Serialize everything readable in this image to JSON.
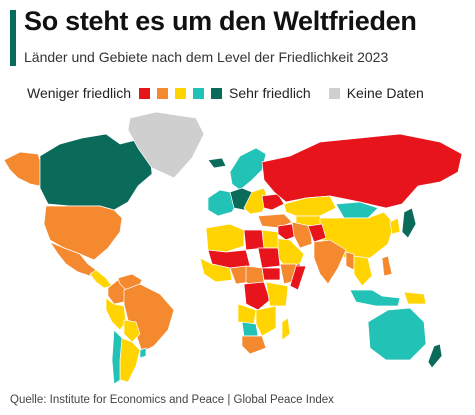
{
  "header": {
    "title": "So steht es um den Weltfrieden",
    "subtitle": "Länder und Gebiete nach dem Level der Friedlichkeit 2023"
  },
  "legend": {
    "less_label": "Weniger friedlich",
    "more_label": "Sehr friedlich",
    "nodata_label": "Keine Daten",
    "levels": [
      "very_low",
      "low",
      "medium",
      "high",
      "very_high"
    ]
  },
  "colors": {
    "accent": "#0b6b5a",
    "very_low": "#e8141c",
    "low": "#f5892f",
    "medium": "#ffd400",
    "high": "#22c2b6",
    "very_high": "#0b6b5a",
    "nodata": "#cfcfcf",
    "border": "#ffffff"
  },
  "regions": [
    {
      "id": "alaska",
      "level": "low"
    },
    {
      "id": "canada",
      "level": "very_high"
    },
    {
      "id": "usa",
      "level": "low"
    },
    {
      "id": "mexico",
      "level": "low"
    },
    {
      "id": "central-america",
      "level": "medium"
    },
    {
      "id": "colombia",
      "level": "low"
    },
    {
      "id": "venezuela",
      "level": "low"
    },
    {
      "id": "brazil",
      "level": "low"
    },
    {
      "id": "peru",
      "level": "medium"
    },
    {
      "id": "bolivia",
      "level": "medium"
    },
    {
      "id": "argentina",
      "level": "medium"
    },
    {
      "id": "chile",
      "level": "high"
    },
    {
      "id": "uruguay",
      "level": "high"
    },
    {
      "id": "greenland",
      "level": "nodata"
    },
    {
      "id": "iceland",
      "level": "very_high"
    },
    {
      "id": "scandinavia",
      "level": "high"
    },
    {
      "id": "western-europe",
      "level": "high"
    },
    {
      "id": "central-europe",
      "level": "very_high"
    },
    {
      "id": "eastern-europe",
      "level": "medium"
    },
    {
      "id": "ukraine",
      "level": "very_low"
    },
    {
      "id": "russia",
      "level": "very_low"
    },
    {
      "id": "kazakhstan",
      "level": "medium"
    },
    {
      "id": "central-asia",
      "level": "medium"
    },
    {
      "id": "mongolia",
      "level": "high"
    },
    {
      "id": "china",
      "level": "medium"
    },
    {
      "id": "turkey-middle-east",
      "level": "low"
    },
    {
      "id": "syria-iraq",
      "level": "very_low"
    },
    {
      "id": "iran",
      "level": "low"
    },
    {
      "id": "afghanistan",
      "level": "very_low"
    },
    {
      "id": "arabia",
      "level": "medium"
    },
    {
      "id": "yemen",
      "level": "very_low"
    },
    {
      "id": "india",
      "level": "low"
    },
    {
      "id": "southeast-asia",
      "level": "medium"
    },
    {
      "id": "myanmar",
      "level": "low"
    },
    {
      "id": "korea",
      "level": "medium"
    },
    {
      "id": "japan",
      "level": "very_high"
    },
    {
      "id": "indonesia",
      "level": "high"
    },
    {
      "id": "philippines",
      "level": "low"
    },
    {
      "id": "papua",
      "level": "medium"
    },
    {
      "id": "australia",
      "level": "high"
    },
    {
      "id": "new-zealand",
      "level": "very_high"
    },
    {
      "id": "north-africa",
      "level": "medium"
    },
    {
      "id": "libya",
      "level": "very_low"
    },
    {
      "id": "egypt",
      "level": "medium"
    },
    {
      "id": "sahel-west",
      "level": "very_low"
    },
    {
      "id": "west-africa",
      "level": "medium"
    },
    {
      "id": "nigeria",
      "level": "low"
    },
    {
      "id": "sudan",
      "level": "very_low"
    },
    {
      "id": "south-sudan",
      "level": "very_low"
    },
    {
      "id": "ethiopia",
      "level": "low"
    },
    {
      "id": "somalia",
      "level": "very_low"
    },
    {
      "id": "central-africa",
      "level": "low"
    },
    {
      "id": "drc",
      "level": "very_low"
    },
    {
      "id": "east-africa",
      "level": "medium"
    },
    {
      "id": "angola",
      "level": "medium"
    },
    {
      "id": "southern-africa",
      "level": "medium"
    },
    {
      "id": "botswana",
      "level": "high"
    },
    {
      "id": "south-africa",
      "level": "low"
    },
    {
      "id": "madagascar",
      "level": "medium"
    }
  ],
  "source": "Quelle: Institute for Economics and Peace | Global Peace Index"
}
